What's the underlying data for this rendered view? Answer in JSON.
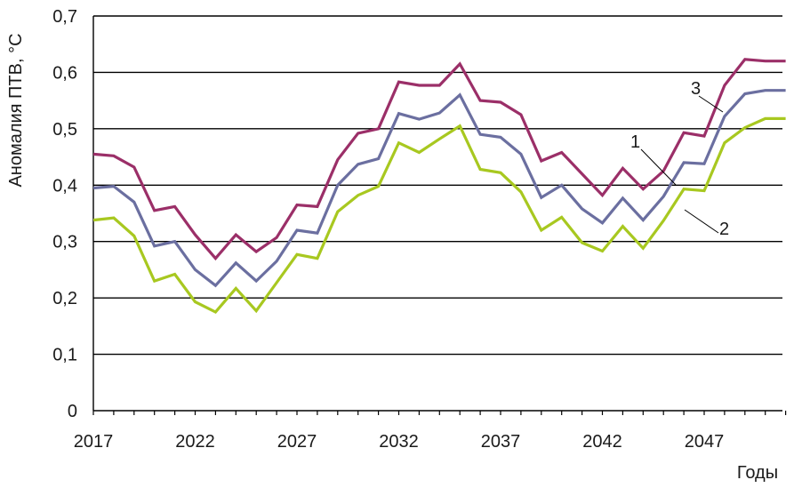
{
  "chart_data": {
    "type": "line",
    "xlabel": "Годы",
    "ylabel": "Аномалия ПТВ, °С",
    "xlim": [
      2017,
      2051
    ],
    "ylim": [
      0,
      0.7
    ],
    "grid": "horizontal",
    "x_ticks": [
      2017,
      2022,
      2027,
      2032,
      2037,
      2042,
      2047
    ],
    "x_tick_labels": [
      "2017",
      "2022",
      "2027",
      "2032",
      "2037",
      "2042",
      "2047"
    ],
    "y_ticks": [
      0,
      0.1,
      0.2,
      0.3,
      0.4,
      0.5,
      0.6,
      0.7
    ],
    "y_tick_labels": [
      "0",
      "0,1",
      "0,2",
      "0,3",
      "0,4",
      "0,5",
      "0,6",
      "0,7"
    ],
    "x": [
      2017,
      2018,
      2019,
      2020,
      2021,
      2022,
      2023,
      2024,
      2025,
      2026,
      2027,
      2028,
      2029,
      2030,
      2031,
      2032,
      2033,
      2034,
      2035,
      2036,
      2037,
      2038,
      2039,
      2040,
      2041,
      2042,
      2043,
      2044,
      2045,
      2046,
      2047,
      2048,
      2049,
      2050,
      2051
    ],
    "series": [
      {
        "name": "1",
        "color": "#9b2f68",
        "values": [
          0.455,
          0.452,
          0.432,
          0.355,
          0.362,
          0.312,
          0.27,
          0.312,
          0.282,
          0.307,
          0.365,
          0.362,
          0.445,
          0.492,
          0.5,
          0.583,
          0.577,
          0.577,
          0.615,
          0.55,
          0.547,
          0.525,
          0.443,
          0.458,
          0.42,
          0.382,
          0.43,
          0.393,
          0.425,
          0.493,
          0.487,
          0.577,
          0.623,
          0.62,
          0.62
        ]
      },
      {
        "name": "2",
        "color": "#a8c820",
        "values": [
          0.338,
          0.342,
          0.31,
          0.23,
          0.242,
          0.193,
          0.175,
          0.217,
          0.177,
          0.227,
          0.277,
          0.27,
          0.353,
          0.382,
          0.398,
          0.475,
          0.458,
          0.482,
          0.505,
          0.428,
          0.422,
          0.388,
          0.32,
          0.343,
          0.298,
          0.283,
          0.327,
          0.288,
          0.337,
          0.393,
          0.39,
          0.475,
          0.502,
          0.518,
          0.518
        ]
      },
      {
        "name": "3",
        "color": "#6b6fa0",
        "values": [
          0.395,
          0.398,
          0.37,
          0.292,
          0.3,
          0.25,
          0.222,
          0.262,
          0.23,
          0.265,
          0.32,
          0.315,
          0.4,
          0.437,
          0.447,
          0.527,
          0.517,
          0.528,
          0.56,
          0.49,
          0.485,
          0.455,
          0.378,
          0.4,
          0.358,
          0.333,
          0.377,
          0.338,
          0.38,
          0.44,
          0.438,
          0.522,
          0.562,
          0.568,
          0.568
        ]
      }
    ],
    "annotations": [
      {
        "label": "1",
        "series": "1",
        "x": 2045.2,
        "y": 0.41
      },
      {
        "label": "2",
        "series": "2",
        "x": 2045.6,
        "y": 0.37
      },
      {
        "label": "3",
        "series": "3",
        "x": 2048.3,
        "y": 0.54
      }
    ]
  }
}
